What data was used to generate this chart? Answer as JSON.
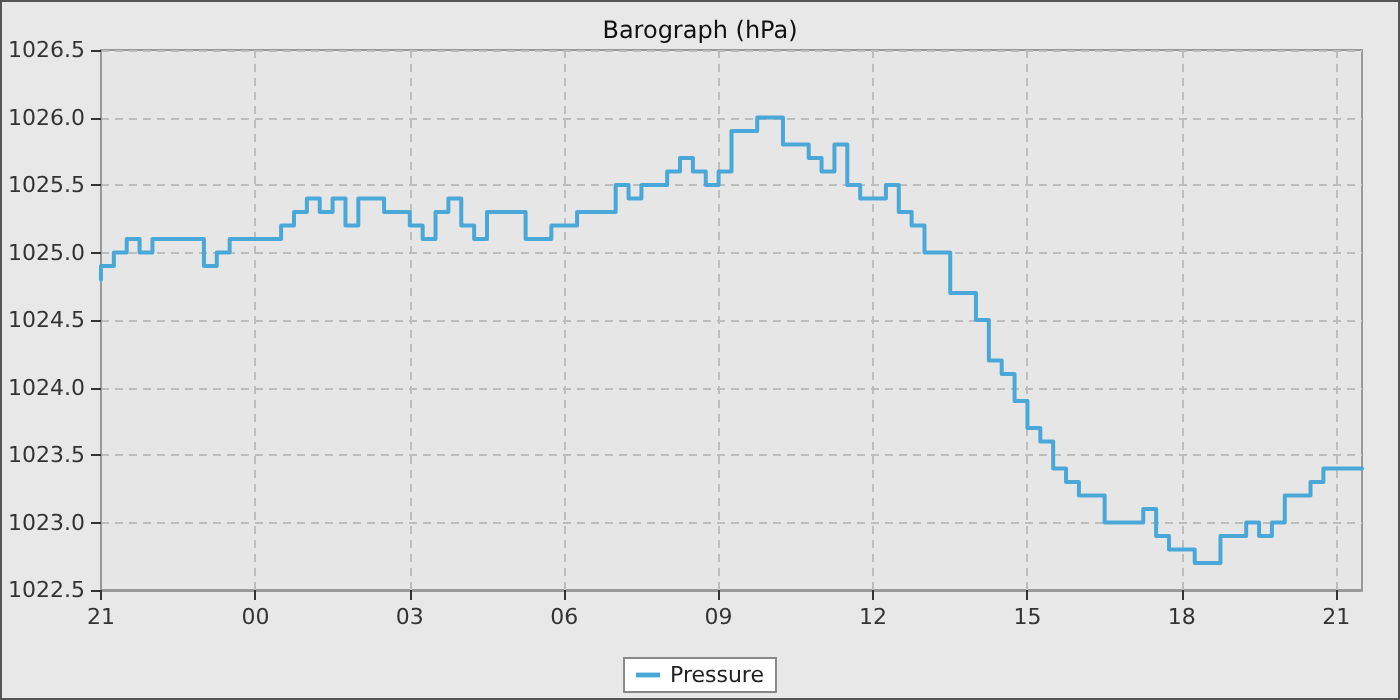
{
  "chart_data": {
    "type": "step",
    "title": "Barograph (hPa)",
    "categories": [
      "21",
      null,
      null,
      null,
      null,
      null,
      null,
      null,
      null,
      null,
      null,
      null,
      "00",
      null,
      null,
      null,
      null,
      null,
      null,
      null,
      null,
      null,
      null,
      null,
      "03",
      null,
      null,
      null,
      null,
      null,
      null,
      null,
      null,
      null,
      null,
      null,
      "06",
      null,
      null,
      null,
      null,
      null,
      null,
      null,
      null,
      null,
      null,
      null,
      "09",
      null,
      null,
      null,
      null,
      null,
      null,
      null,
      null,
      null,
      null,
      null,
      "12",
      null,
      null,
      null,
      null,
      null,
      null,
      null,
      null,
      null,
      null,
      null,
      "15",
      null,
      null,
      null,
      null,
      null,
      null,
      null,
      null,
      null,
      null,
      null,
      "18",
      null,
      null,
      null,
      null,
      null,
      null,
      null,
      null,
      null,
      null,
      null,
      "21",
      null,
      null
    ],
    "ylim": [
      1022.5,
      1026.5
    ],
    "yticks": [
      1022.5,
      {
        "value": 1023,
        "label": "1023.0"
      },
      1023.5,
      {
        "value": 1024,
        "label": "1024.0"
      },
      1024.5,
      {
        "value": 1025,
        "label": "1025.0"
      },
      1025.5,
      {
        "value": 1026,
        "label": "1026.0"
      },
      1026.5
    ],
    "grid": true,
    "legend": "bottom",
    "marker": "none",
    "line_style": "solid",
    "series": [
      {
        "name": "Pressure",
        "color": "#4aa8d8",
        "values": [
          1024.8,
          1024.9,
          1025.0,
          1025.1,
          1025.0,
          1025.1,
          1025.1,
          1025.1,
          1025.1,
          1024.9,
          1025.0,
          1025.1,
          1025.1,
          1025.1,
          1025.1,
          1025.2,
          1025.3,
          1025.4,
          1025.3,
          1025.4,
          1025.2,
          1025.4,
          1025.4,
          1025.3,
          1025.3,
          1025.2,
          1025.1,
          1025.3,
          1025.4,
          1025.2,
          1025.1,
          1025.3,
          1025.3,
          1025.3,
          1025.1,
          1025.1,
          1025.2,
          1025.2,
          1025.3,
          1025.3,
          1025.3,
          1025.5,
          1025.4,
          1025.5,
          1025.5,
          1025.6,
          1025.7,
          1025.6,
          1025.5,
          1025.6,
          1025.9,
          1025.9,
          1026.0,
          1026.0,
          1025.8,
          1025.8,
          1025.7,
          1025.6,
          1025.8,
          1025.5,
          1025.4,
          1025.4,
          1025.5,
          1025.3,
          1025.2,
          1025.0,
          1025.0,
          1024.7,
          1024.7,
          1024.5,
          1024.2,
          1024.1,
          1023.9,
          1023.7,
          1023.6,
          1023.4,
          1023.3,
          1023.2,
          1023.2,
          1023.0,
          1023.0,
          1023.0,
          1023.1,
          1022.9,
          1022.8,
          1022.8,
          1022.7,
          1022.7,
          1022.9,
          1022.9,
          1023.0,
          1022.9,
          1023.0,
          1023.2,
          1023.2,
          1023.3,
          1023.4,
          1023.4,
          1023.4
        ]
      }
    ]
  }
}
